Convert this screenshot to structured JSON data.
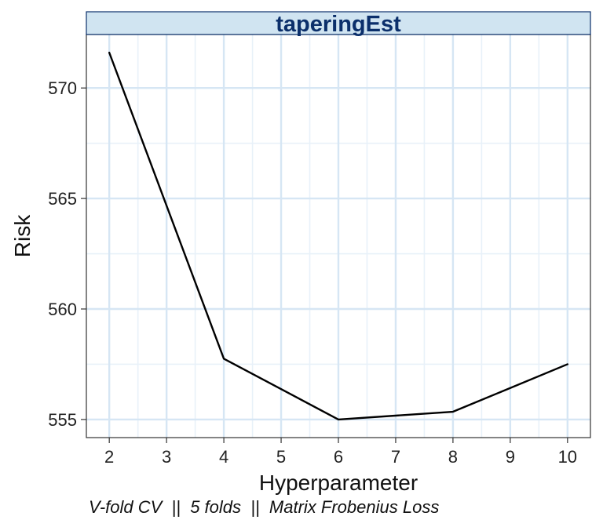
{
  "chart_data": {
    "type": "line",
    "facet_title": "taperingEst",
    "x": [
      2,
      4,
      6,
      8,
      10
    ],
    "series": [
      {
        "values": [
          571.6,
          557.75,
          555.0,
          555.35,
          557.5
        ],
        "color": "#000000"
      }
    ],
    "xlabel": "Hyperparameter",
    "ylabel": "Risk",
    "caption": "V-fold CV  ||  5 folds  ||  Matrix Frobenius Loss",
    "x_ticks": [
      2,
      3,
      4,
      5,
      6,
      7,
      8,
      9,
      10
    ],
    "x_tick_labels": [
      "2",
      "3",
      "4",
      "5",
      "6",
      "7",
      "8",
      "9",
      "10"
    ],
    "y_ticks": [
      555,
      560,
      565,
      570
    ],
    "y_tick_labels": [
      "555",
      "560",
      "565",
      "570"
    ],
    "x_minor_ticks": [
      2.5,
      3.5,
      4.5,
      5.5,
      6.5,
      7.5,
      8.5,
      9.5
    ],
    "y_minor_ticks": [
      557.5,
      562.5,
      567.5
    ],
    "xlim": [
      1.6,
      10.4
    ],
    "ylim": [
      554.18,
      572.42
    ],
    "grid": true,
    "legend": "none",
    "colors": {
      "strip_fill": "#d0e4f1",
      "strip_border": "#0b2f6b",
      "strip_text": "#0b2f6b",
      "grid_major": "#d6e6f4",
      "grid_minor": "#e8f1f9",
      "panel_border": "#333333",
      "line": "#000000"
    }
  }
}
